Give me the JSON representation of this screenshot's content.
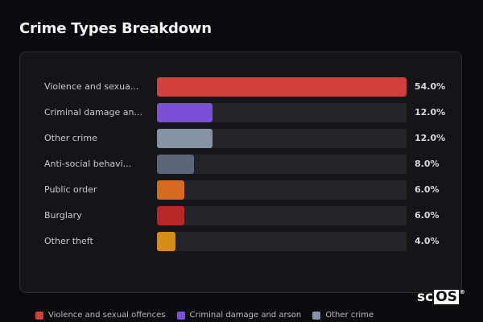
{
  "title": "Crime Types Breakdown",
  "chart_data": {
    "type": "bar",
    "orientation": "horizontal",
    "categories": [
      "Violence and sexua...",
      "Criminal damage an...",
      "Other crime",
      "Anti-social behavi...",
      "Public order",
      "Burglary",
      "Other theft"
    ],
    "values": [
      54.0,
      12.0,
      12.0,
      8.0,
      6.0,
      6.0,
      4.0
    ],
    "value_labels": [
      "54.0%",
      "12.0%",
      "12.0%",
      "8.0%",
      "6.0%",
      "6.0%",
      "4.0%"
    ],
    "colors": [
      "#d13f3f",
      "#7b4fd6",
      "#8792a6",
      "#5b6577",
      "#d66b1f",
      "#b82828",
      "#d68c17"
    ],
    "xlim": [
      0,
      54
    ],
    "grid": false,
    "legend_position": "bottom"
  },
  "legend": [
    {
      "label": "Violence and sexual offences",
      "color": "#d13f3f"
    },
    {
      "label": "Criminal damage and arson",
      "color": "#7b4fd6"
    },
    {
      "label": "Other crime",
      "color": "#8792a6"
    }
  ],
  "logo": {
    "text_a": "sc",
    "text_b": "OS",
    "mark": "®"
  }
}
